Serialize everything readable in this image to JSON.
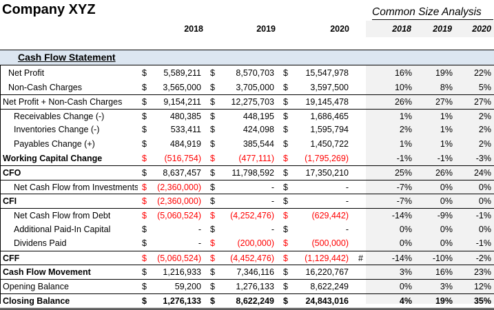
{
  "header": {
    "company": "Company XYZ",
    "analysis_title": "Common Size Analysis",
    "years": [
      "2018",
      "2019",
      "2020"
    ],
    "pct_years": [
      "2018",
      "2019",
      "2020"
    ]
  },
  "section_title": "Cash Flow Statement",
  "currency_symbol": "$",
  "rows": [
    {
      "label": "Net Profit",
      "indent": 1,
      "bold": false,
      "values": [
        "5,589,211",
        "8,570,703",
        "15,547,978"
      ],
      "pcts": [
        "16%",
        "19%",
        "22%"
      ],
      "red": [
        false,
        false,
        false
      ],
      "line": ""
    },
    {
      "label": "Non-Cash Charges",
      "indent": 1,
      "bold": false,
      "values": [
        "3,565,000",
        "3,705,000",
        "3,597,500"
      ],
      "pcts": [
        "10%",
        "8%",
        "5%"
      ],
      "red": [
        false,
        false,
        false
      ],
      "line": ""
    },
    {
      "label": "Net Profit + Non-Cash Charges",
      "indent": 0,
      "bold": false,
      "values": [
        "9,154,211",
        "12,275,703",
        "19,145,478"
      ],
      "pcts": [
        "26%",
        "27%",
        "27%"
      ],
      "red": [
        false,
        false,
        false
      ],
      "line": "top"
    },
    {
      "label": "Receivables Change (-)",
      "indent": 2,
      "bold": false,
      "values": [
        "480,385",
        "448,195",
        "1,686,465"
      ],
      "pcts": [
        "1%",
        "1%",
        "2%"
      ],
      "red": [
        false,
        false,
        false
      ],
      "line": "top"
    },
    {
      "label": "Inventories Change (-)",
      "indent": 2,
      "bold": false,
      "values": [
        "533,411",
        "424,098",
        "1,595,794"
      ],
      "pcts": [
        "2%",
        "1%",
        "2%"
      ],
      "red": [
        false,
        false,
        false
      ],
      "line": ""
    },
    {
      "label": "Payables Change (+)",
      "indent": 2,
      "bold": false,
      "values": [
        "484,919",
        "385,544",
        "1,450,722"
      ],
      "pcts": [
        "1%",
        "1%",
        "2%"
      ],
      "red": [
        false,
        false,
        false
      ],
      "line": ""
    },
    {
      "label": "Working Capital Change",
      "indent": 0,
      "bold": true,
      "values": [
        "(516,754)",
        "(477,111)",
        "(1,795,269)"
      ],
      "pcts": [
        "-1%",
        "-1%",
        "-3%"
      ],
      "red": [
        true,
        true,
        true
      ],
      "line": ""
    },
    {
      "label": "CFO",
      "indent": 0,
      "bold": true,
      "values": [
        "8,637,457",
        "11,798,592",
        "17,350,210"
      ],
      "pcts": [
        "25%",
        "26%",
        "24%"
      ],
      "red": [
        false,
        false,
        false
      ],
      "line": "top"
    },
    {
      "label": "Net Cash Flow from Investments",
      "indent": 2,
      "bold": false,
      "values": [
        "(2,360,000)",
        "-",
        "-"
      ],
      "pcts": [
        "-7%",
        "0%",
        "0%"
      ],
      "red": [
        true,
        false,
        false
      ],
      "line": "top"
    },
    {
      "label": "CFI",
      "indent": 0,
      "bold": true,
      "values": [
        "(2,360,000)",
        "-",
        "-"
      ],
      "pcts": [
        "-7%",
        "0%",
        "0%"
      ],
      "red": [
        true,
        false,
        false
      ],
      "line": "top"
    },
    {
      "label": "Net Cash Flow from Debt",
      "indent": 2,
      "bold": false,
      "values": [
        "(5,060,524)",
        "(4,252,476)",
        "(629,442)"
      ],
      "pcts": [
        "-14%",
        "-9%",
        "-1%"
      ],
      "red": [
        true,
        true,
        true
      ],
      "line": "top"
    },
    {
      "label": "Additional Paid-In Capital",
      "indent": 2,
      "bold": false,
      "values": [
        "-",
        "-",
        "-"
      ],
      "pcts": [
        "0%",
        "0%",
        "0%"
      ],
      "red": [
        false,
        false,
        false
      ],
      "line": ""
    },
    {
      "label": "Dividens Paid",
      "indent": 2,
      "bold": false,
      "values": [
        "-",
        "(200,000)",
        "(500,000)"
      ],
      "pcts": [
        "0%",
        "0%",
        "-1%"
      ],
      "red": [
        false,
        true,
        true
      ],
      "line": ""
    },
    {
      "label": "CFF",
      "indent": 0,
      "bold": true,
      "values": [
        "(5,060,524)",
        "(4,452,476)",
        "(1,129,442)"
      ],
      "pcts": [
        "-14%",
        "-10%",
        "-2%"
      ],
      "red": [
        true,
        true,
        true
      ],
      "line": "top",
      "hash": "#"
    },
    {
      "label": "Cash Flow Movement",
      "indent": 0,
      "bold": true,
      "values": [
        "1,216,933",
        "7,346,116",
        "16,220,767"
      ],
      "pcts": [
        "3%",
        "16%",
        "23%"
      ],
      "red": [
        false,
        false,
        false
      ],
      "line": "top"
    },
    {
      "label": "Opening Balance",
      "indent": 0,
      "bold": false,
      "values": [
        "59,200",
        "1,276,133",
        "8,622,249"
      ],
      "pcts": [
        "0%",
        "3%",
        "12%"
      ],
      "red": [
        false,
        false,
        false
      ],
      "line": "top"
    },
    {
      "label": "Closing Balance",
      "indent": 0,
      "bold": true,
      "values": [
        "1,276,133",
        "8,622,249",
        "24,843,016"
      ],
      "pcts": [
        "4%",
        "19%",
        "35%"
      ],
      "red": [
        false,
        false,
        false
      ],
      "line": "top"
    }
  ]
}
